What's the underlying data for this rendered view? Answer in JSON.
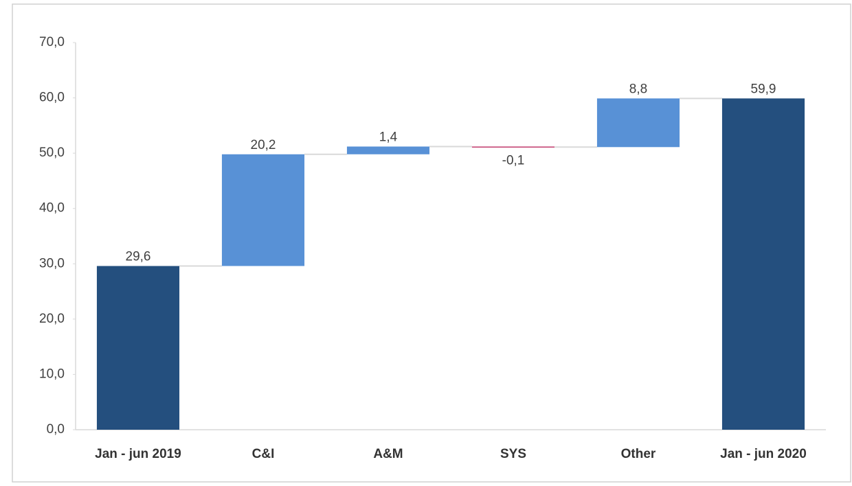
{
  "chart_data": {
    "type": "waterfall",
    "categories": [
      "Jan - jun 2019",
      "C&I",
      "A&M",
      "SYS",
      "Other",
      "Jan - jun 2020"
    ],
    "values": [
      29.6,
      20.2,
      1.4,
      -0.1,
      8.8,
      59.9
    ],
    "value_labels": [
      "29,6",
      "20,2",
      "1,4",
      "-0,1",
      "8,8",
      "59,9"
    ],
    "is_total": [
      true,
      false,
      false,
      false,
      false,
      true
    ],
    "total_color": "#244f7e",
    "increase_color": "#5891d6",
    "decrease_color": "#c0396b",
    "ylim": [
      0,
      70
    ],
    "yticks": [
      {
        "value": 0,
        "label": "0,0"
      },
      {
        "value": 10,
        "label": "10,0"
      },
      {
        "value": 20,
        "label": "20,0"
      },
      {
        "value": 30,
        "label": "30,0"
      },
      {
        "value": 40,
        "label": "40,0"
      },
      {
        "value": 50,
        "label": "50,0"
      },
      {
        "value": 60,
        "label": "60,0"
      },
      {
        "value": 70,
        "label": "70,0"
      }
    ],
    "grid": false
  }
}
